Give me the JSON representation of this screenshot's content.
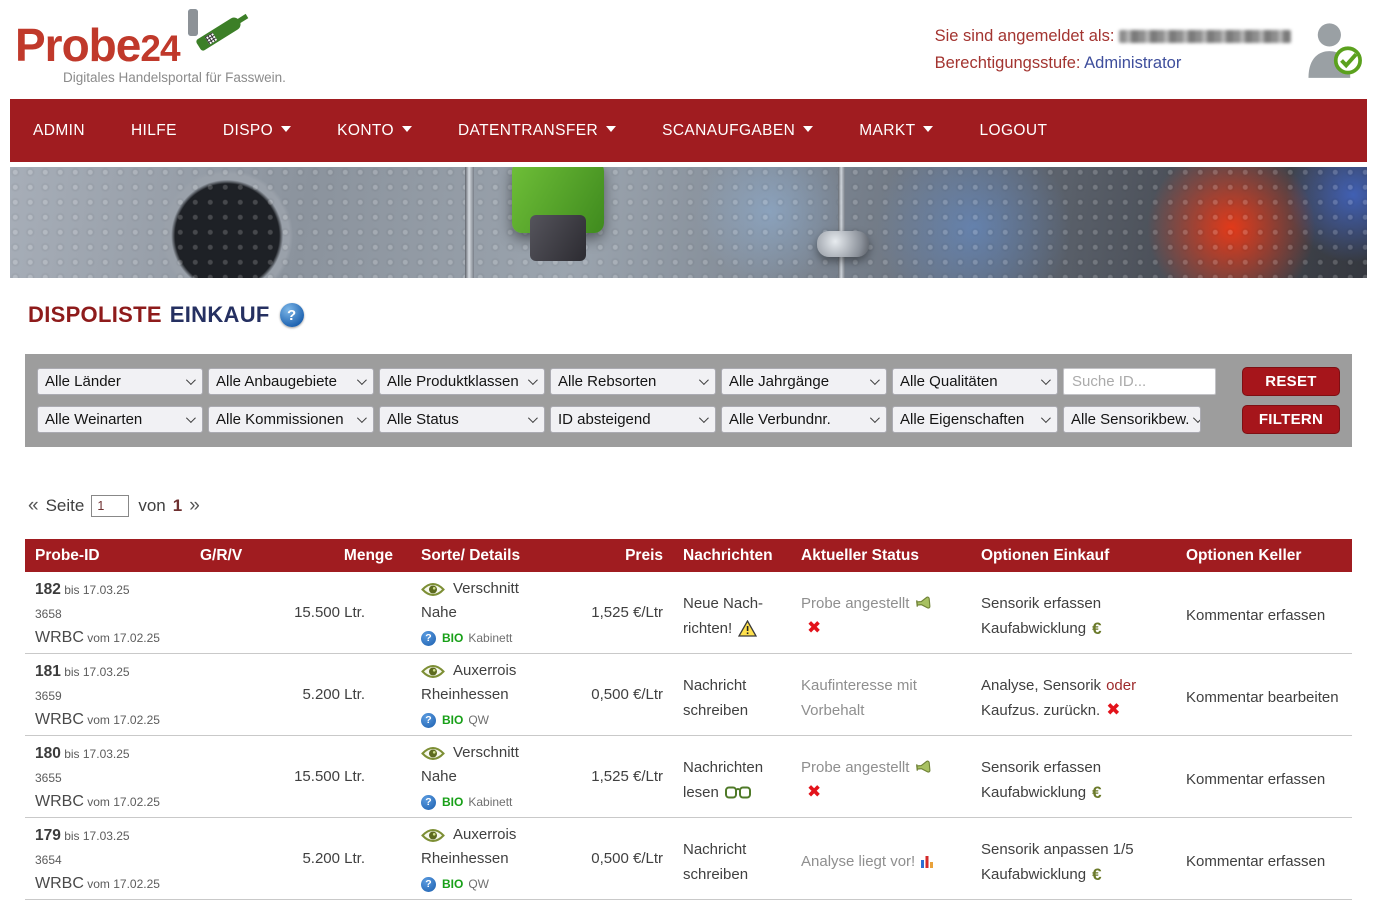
{
  "brand": {
    "name_main": "Probe",
    "name_number": "24",
    "tagline": "Digitales Handelsportal für Fasswein."
  },
  "user_info": {
    "logged_in_label": "Sie sind angemeldet als:",
    "permission_label": "Berechtigungsstufe:",
    "permission_value": "Administrator"
  },
  "nav": {
    "items": [
      {
        "label": "ADMIN",
        "dropdown": false
      },
      {
        "label": "HILFE",
        "dropdown": false
      },
      {
        "label": "DISPO",
        "dropdown": true
      },
      {
        "label": "KONTO",
        "dropdown": true
      },
      {
        "label": "DATENTRANSFER",
        "dropdown": true
      },
      {
        "label": "SCANAUFGABEN",
        "dropdown": true
      },
      {
        "label": "MARKT",
        "dropdown": true
      },
      {
        "label": "LOGOUT",
        "dropdown": false
      }
    ]
  },
  "page": {
    "title_part1": "DISPOLISTE",
    "title_part2": "EINKAUF",
    "help_icon": "?"
  },
  "filters": {
    "row1": [
      "Alle Länder",
      "Alle Anbaugebiete",
      "Alle Produktklassen",
      "Alle Rebsorten",
      "Alle Jahrgänge",
      "Alle Qualitäten"
    ],
    "row2": [
      "Alle Weinarten",
      "Alle Kommissionen",
      "Alle Status",
      "ID absteigend",
      "Alle Verbundnr.",
      "Alle Eigenschaften",
      "Alle Sensorikbew."
    ],
    "search_placeholder": "Suche ID...",
    "reset_label": "RESET",
    "filter_label": "FILTERN",
    "accent_color": "#a6151b",
    "bar_color": "#9d9d9d"
  },
  "pagination": {
    "prev_symbol": "«",
    "label": "Seite",
    "current": "1",
    "of_label": "von",
    "total": "1",
    "next_symbol": "»"
  },
  "table": {
    "headers": [
      "Probe-ID",
      "G/R/V",
      "Menge",
      "Sorte/ Details",
      "Preis",
      "Nachrichten",
      "Aktueller Status",
      "Optionen Einkauf",
      "Optionen Keller"
    ],
    "header_color": "#a01c20",
    "rows": [
      {
        "id": "182",
        "bis": "bis 17.03.25",
        "lot": "3658",
        "code": "WRBC",
        "vom": "vom 17.02.25",
        "grv": "",
        "menge": "15.500 Ltr.",
        "sorte": "Verschnitt",
        "region": "Nahe",
        "bio": "BIO",
        "qualitaet": "Kabinett",
        "preis": "1,525 €/Ltr",
        "nachrichten": [
          {
            "text": "Neue Nach-"
          },
          {
            "text": "richten!",
            "icon": "warning"
          }
        ],
        "status": [
          {
            "text": "Probe angestellt",
            "icon": "flask"
          },
          {
            "text": "",
            "icon": "red-x"
          }
        ],
        "einkauf": [
          {
            "text": "Sensorik erfassen"
          },
          {
            "text": "Kaufabwicklung",
            "icon": "euro"
          }
        ],
        "keller": "Kommentar erfassen"
      },
      {
        "id": "181",
        "bis": "bis 17.03.25",
        "lot": "3659",
        "code": "WRBC",
        "vom": "vom 17.02.25",
        "grv": "",
        "menge": "5.200 Ltr.",
        "sorte": "Auxerrois",
        "region": "Rheinhessen",
        "bio": "BIO",
        "qualitaet": "QW",
        "preis": "0,500 €/Ltr",
        "nachrichten": [
          {
            "text": "Nachricht"
          },
          {
            "text": "schreiben"
          }
        ],
        "status": [
          {
            "text": "Kaufinteresse mit"
          },
          {
            "text": "Vorbehalt"
          }
        ],
        "einkauf": [
          {
            "text": "Analyse, Sensorik",
            "suffix": "oder"
          },
          {
            "text": "Kaufzus. zurückn.",
            "icon": "red-x"
          }
        ],
        "keller": "Kommentar bearbeiten"
      },
      {
        "id": "180",
        "bis": "bis 17.03.25",
        "lot": "3655",
        "code": "WRBC",
        "vom": "vom 17.02.25",
        "grv": "",
        "menge": "15.500 Ltr.",
        "sorte": "Verschnitt",
        "region": "Nahe",
        "bio": "BIO",
        "qualitaet": "Kabinett",
        "preis": "1,525 €/Ltr",
        "nachrichten": [
          {
            "text": "Nachrichten"
          },
          {
            "text": "lesen",
            "icon": "glasses"
          }
        ],
        "status": [
          {
            "text": "Probe angestellt",
            "icon": "flask"
          },
          {
            "text": "",
            "icon": "red-x"
          }
        ],
        "einkauf": [
          {
            "text": "Sensorik erfassen"
          },
          {
            "text": "Kaufabwicklung",
            "icon": "euro"
          }
        ],
        "keller": "Kommentar erfassen"
      },
      {
        "id": "179",
        "bis": "bis 17.03.25",
        "lot": "3654",
        "code": "WRBC",
        "vom": "vom 17.02.25",
        "grv": "",
        "menge": "5.200 Ltr.",
        "sorte": "Auxerrois",
        "region": "Rheinhessen",
        "bio": "BIO",
        "qualitaet": "QW",
        "preis": "0,500 €/Ltr",
        "nachrichten": [
          {
            "text": "Nachricht"
          },
          {
            "text": "schreiben"
          }
        ],
        "status": [
          {
            "text": "Analyse liegt vor!",
            "icon": "chart"
          }
        ],
        "einkauf": [
          {
            "text": "Sensorik anpassen 1/5"
          },
          {
            "text": "Kaufabwicklung",
            "icon": "euro"
          }
        ],
        "keller": "Kommentar erfassen"
      }
    ]
  },
  "icons": {
    "warning": "yellow-warning-triangle",
    "flask": "green-sample-flask",
    "red-x": "✖",
    "euro": "€",
    "glasses": "green-reading-glasses",
    "chart": "mini-bar-chart",
    "eye": "green-eye",
    "question": "?",
    "check": "green-check-circle"
  }
}
